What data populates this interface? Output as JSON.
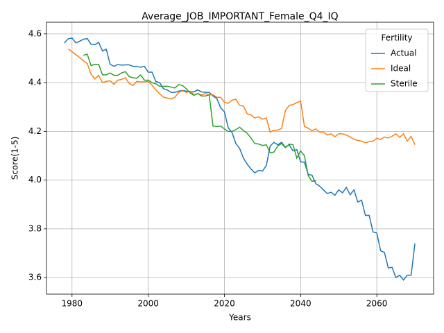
{
  "chart_data": {
    "type": "line",
    "title": "Average_JOB_IMPORTANT_Female_Q4_IQ",
    "xlabel": "Years",
    "ylabel": "Score(1-5)",
    "legend_title": "Fertility",
    "legend": "upper right",
    "grid": true,
    "x": [
      1978,
      1979,
      1980,
      1981,
      1982,
      1983,
      1984,
      1985,
      1986,
      1987,
      1988,
      1989,
      1990,
      1991,
      1992,
      1993,
      1994,
      1995,
      1996,
      1997,
      1998,
      1999,
      2000,
      2001,
      2002,
      2003,
      2004,
      2005,
      2006,
      2007,
      2008,
      2009,
      2010,
      2011,
      2012,
      2013,
      2014,
      2015,
      2016,
      2017,
      2018,
      2019,
      2020,
      2021,
      2022,
      2023,
      2024,
      2025,
      2026,
      2027,
      2028,
      2029,
      2030,
      2031,
      2032,
      2033,
      2034,
      2035,
      2036,
      2037,
      2038,
      2039,
      2040,
      2041,
      2042,
      2043,
      2044,
      2045,
      2046,
      2047,
      2048,
      2049,
      2050,
      2051,
      2052,
      2053,
      2054,
      2055,
      2056,
      2057,
      2058,
      2059,
      2060,
      2061,
      2062,
      2063,
      2064,
      2065,
      2066,
      2067,
      2068,
      2069,
      2070
    ],
    "series": [
      {
        "name": "Actual",
        "color": "#1f77b4",
        "values": [
          4.563,
          4.58,
          4.583,
          4.563,
          4.57,
          4.578,
          4.581,
          4.557,
          4.556,
          4.565,
          4.53,
          4.537,
          4.475,
          4.467,
          4.474,
          4.472,
          4.473,
          4.473,
          4.467,
          4.467,
          4.463,
          4.467,
          4.443,
          4.443,
          4.405,
          4.4,
          4.375,
          4.37,
          4.36,
          4.36,
          4.365,
          4.368,
          4.365,
          4.362,
          4.362,
          4.37,
          4.362,
          4.36,
          4.36,
          4.345,
          4.335,
          4.297,
          4.28,
          4.215,
          4.195,
          4.15,
          4.13,
          4.09,
          4.065,
          4.045,
          4.03,
          4.04,
          4.037,
          4.06,
          4.14,
          4.155,
          4.145,
          4.155,
          4.135,
          4.145,
          4.12,
          4.125,
          4.075,
          4.073,
          4.023,
          4.02,
          3.985,
          3.975,
          3.96,
          3.945,
          3.95,
          3.938,
          3.96,
          3.948,
          3.97,
          3.94,
          3.96,
          3.91,
          3.918,
          3.855,
          3.855,
          3.787,
          3.783,
          3.71,
          3.703,
          3.64,
          3.642,
          3.6,
          3.61,
          3.59,
          3.61,
          3.61,
          3.74
        ]
      },
      {
        "name": "Ideal",
        "color": "#ff7f0e",
        "values": [
          null,
          4.538,
          4.527,
          4.515,
          4.503,
          4.49,
          4.478,
          4.435,
          4.415,
          4.43,
          4.4,
          4.405,
          4.408,
          4.393,
          4.41,
          4.413,
          4.42,
          4.397,
          4.388,
          4.405,
          4.403,
          4.403,
          4.405,
          4.39,
          4.37,
          4.355,
          4.34,
          4.337,
          4.333,
          4.34,
          4.36,
          4.367,
          4.36,
          4.365,
          4.35,
          4.355,
          4.35,
          4.355,
          4.35,
          4.35,
          4.34,
          4.34,
          4.32,
          4.315,
          4.328,
          4.332,
          4.307,
          4.303,
          4.272,
          4.267,
          4.255,
          4.26,
          4.25,
          4.255,
          4.197,
          4.205,
          4.205,
          4.212,
          4.285,
          4.307,
          4.31,
          4.318,
          4.325,
          4.22,
          4.213,
          4.202,
          4.21,
          4.197,
          4.197,
          4.185,
          4.19,
          4.178,
          4.19,
          4.19,
          4.185,
          4.177,
          4.167,
          4.163,
          4.16,
          4.153,
          4.158,
          4.16,
          4.172,
          4.167,
          4.177,
          4.173,
          4.18,
          4.19,
          4.175,
          4.19,
          4.16,
          4.18,
          4.145
        ]
      },
      {
        "name": "Sterile",
        "color": "#2ca02c",
        "values": [
          null,
          null,
          null,
          null,
          null,
          4.512,
          4.517,
          4.47,
          4.475,
          4.475,
          4.432,
          4.432,
          4.44,
          4.43,
          4.43,
          4.44,
          4.445,
          4.425,
          4.42,
          4.418,
          4.432,
          4.41,
          4.41,
          4.4,
          4.395,
          4.385,
          4.385,
          4.385,
          4.382,
          4.378,
          4.392,
          4.388,
          4.375,
          4.358,
          4.348,
          4.355,
          4.345,
          4.345,
          4.35,
          4.222,
          4.22,
          4.222,
          4.21,
          4.2,
          4.2,
          4.207,
          4.217,
          4.203,
          4.192,
          4.172,
          4.15,
          4.148,
          4.142,
          4.145,
          4.112,
          4.115,
          4.14,
          4.15,
          4.133,
          4.148,
          4.145,
          4.09,
          4.12,
          4.1,
          4.018,
          3.995,
          3.997,
          null,
          null,
          null,
          null,
          null,
          null,
          null,
          null,
          null,
          null,
          null,
          null,
          null,
          null,
          null,
          null,
          null,
          null,
          null,
          null,
          null,
          null,
          null,
          null,
          null,
          null
        ]
      }
    ],
    "xlim": [
      1973.3,
      2074.9
    ],
    "xticks": [
      1980,
      2000,
      2020,
      2040,
      2060
    ],
    "ylim": [
      3.532,
      4.648
    ],
    "yticks": [
      3.6,
      3.8,
      {
        "value": 4,
        "label": "4.0"
      },
      4.2,
      4.4,
      4.6
    ]
  }
}
